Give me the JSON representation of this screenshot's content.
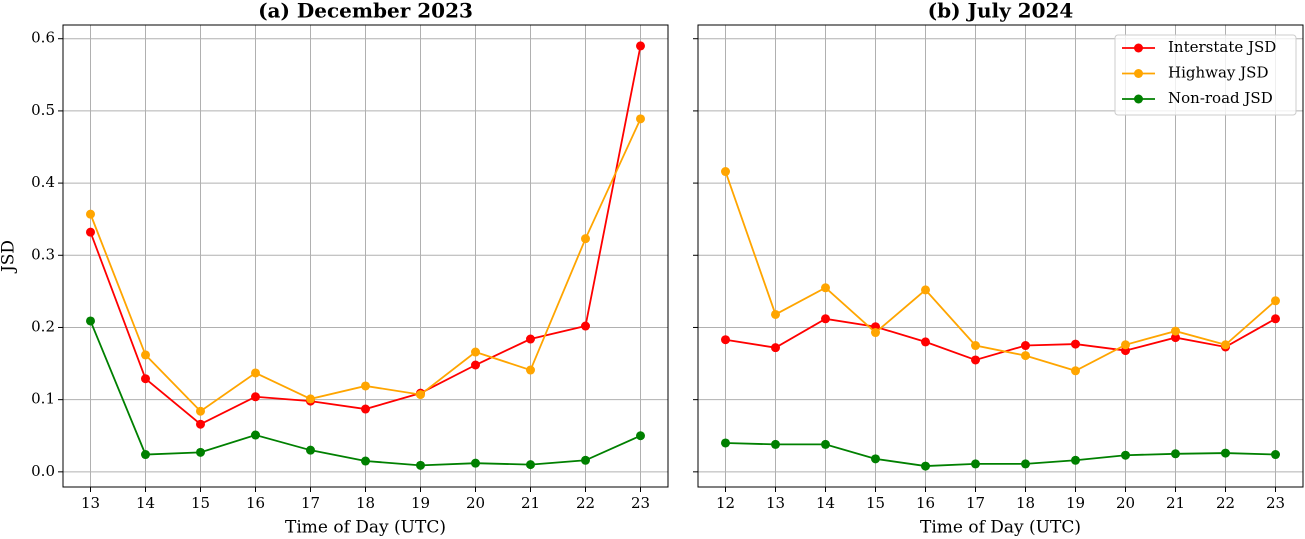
{
  "chart_data": [
    {
      "type": "line",
      "title": "(a) December 2023",
      "xlabel": "Time of Day (UTC)",
      "ylabel": "JSD",
      "x": [
        13,
        14,
        15,
        16,
        17,
        18,
        19,
        20,
        21,
        22,
        23
      ],
      "series": [
        {
          "name": "Interstate JSD",
          "color": "#ff0000",
          "values": [
            0.332,
            0.129,
            0.066,
            0.104,
            0.098,
            0.087,
            0.109,
            0.148,
            0.184,
            0.202,
            0.59
          ]
        },
        {
          "name": "Highway JSD",
          "color": "#ffa500",
          "values": [
            0.357,
            0.162,
            0.084,
            0.137,
            0.101,
            0.119,
            0.107,
            0.166,
            0.141,
            0.323,
            0.489
          ]
        },
        {
          "name": "Non-road JSD",
          "color": "#008000",
          "values": [
            0.209,
            0.024,
            0.027,
            0.051,
            0.03,
            0.015,
            0.009,
            0.012,
            0.01,
            0.016,
            0.05
          ]
        }
      ],
      "xlim": [
        12.5,
        23.5
      ],
      "xticks": [
        13,
        14,
        15,
        16,
        17,
        18,
        19,
        20,
        21,
        22,
        23
      ],
      "ylim": [
        -0.021,
        0.619
      ],
      "yticks": [
        {
          "value": 0,
          "label": "0.0"
        },
        0.1,
        0.2,
        0.3,
        0.4,
        0.5,
        0.6
      ],
      "grid": true,
      "legend": null
    },
    {
      "type": "line",
      "title": "(b) July 2024",
      "xlabel": "Time of Day (UTC)",
      "x": [
        12,
        13,
        14,
        15,
        16,
        17,
        18,
        19,
        20,
        21,
        22,
        23
      ],
      "series": [
        {
          "name": "Interstate JSD",
          "color": "#ff0000",
          "values": [
            0.183,
            0.172,
            0.212,
            0.201,
            0.18,
            0.155,
            0.175,
            0.177,
            0.168,
            0.186,
            0.173,
            0.212
          ]
        },
        {
          "name": "Highway JSD",
          "color": "#ffa500",
          "values": [
            0.416,
            0.218,
            0.255,
            0.193,
            0.252,
            0.175,
            0.161,
            0.14,
            0.176,
            0.195,
            0.176,
            0.237
          ]
        },
        {
          "name": "Non-road JSD",
          "color": "#008000",
          "values": [
            0.04,
            0.038,
            0.038,
            0.018,
            0.008,
            0.011,
            0.011,
            0.016,
            0.023,
            0.025,
            0.026,
            0.024
          ]
        }
      ],
      "xlim": [
        11.45,
        23.55
      ],
      "xticks": [
        12,
        13,
        14,
        15,
        16,
        17,
        18,
        19,
        20,
        21,
        22,
        23
      ],
      "ylim": [
        -0.021,
        0.619
      ],
      "yticks": [
        0,
        0.1,
        0.2,
        0.3,
        0.4,
        0.5,
        0.6
      ],
      "grid": true,
      "legend": "upper right"
    }
  ]
}
